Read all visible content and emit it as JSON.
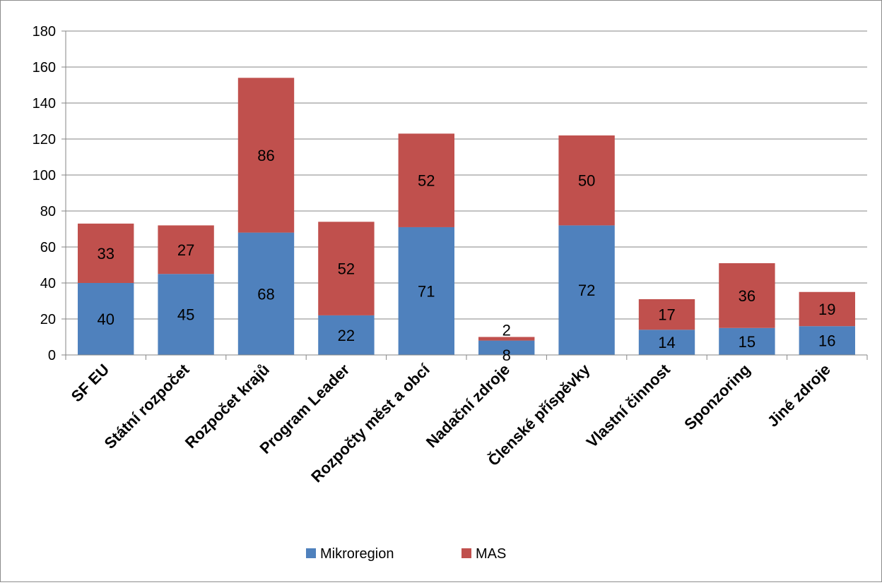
{
  "chart_data": {
    "type": "bar",
    "stacked": true,
    "categories": [
      "SF EU",
      "Státní rozpočet",
      "Rozpočet krajů",
      "Program Leader",
      "Rozpočty měst a obcí",
      "Nadační zdroje",
      "Členské příspěvky",
      "Vlastní činnost",
      "Sponzoring",
      "Jiné zdroje"
    ],
    "series": [
      {
        "name": "Mikroregion",
        "color": "#4f81bd",
        "values": [
          40,
          45,
          68,
          22,
          71,
          8,
          72,
          14,
          15,
          16
        ]
      },
      {
        "name": "MAS",
        "color": "#c0504d",
        "values": [
          33,
          27,
          86,
          52,
          52,
          2,
          50,
          17,
          36,
          19
        ]
      }
    ],
    "title": "",
    "xlabel": "",
    "ylabel": "",
    "ylim": [
      0,
      180
    ],
    "yticks": [
      0,
      20,
      40,
      60,
      80,
      100,
      120,
      140,
      160,
      180
    ],
    "grid": true,
    "legend_position": "bottom",
    "data_labels": true
  }
}
